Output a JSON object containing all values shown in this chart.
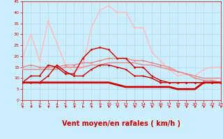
{
  "background_color": "#cceeff",
  "grid_color": "#aadddd",
  "xlabel": "Vent moyen/en rafales ( km/h )",
  "xlabel_color": "#cc0000",
  "xlabel_fontsize": 7,
  "tick_color": "#cc0000",
  "ylim": [
    0,
    45
  ],
  "xlim": [
    0,
    23
  ],
  "yticks": [
    0,
    5,
    10,
    15,
    20,
    25,
    30,
    35,
    40,
    45
  ],
  "xticks": [
    0,
    1,
    2,
    3,
    4,
    5,
    6,
    7,
    8,
    9,
    10,
    11,
    12,
    13,
    14,
    15,
    16,
    17,
    18,
    19,
    20,
    21,
    22,
    23
  ],
  "lines": [
    {
      "x": [
        0,
        1,
        2,
        3,
        4,
        5,
        6,
        7,
        8,
        9,
        10,
        11,
        12,
        13,
        14,
        15,
        16,
        17,
        18,
        19,
        20,
        21,
        22,
        23
      ],
      "y": [
        8,
        8,
        8,
        8,
        8,
        8,
        8,
        8,
        8,
        8,
        8,
        7,
        6,
        6,
        6,
        6,
        6,
        6,
        5,
        5,
        5,
        8,
        8,
        8
      ],
      "color": "#cc0000",
      "lw": 2.0,
      "marker": null,
      "ms": 0,
      "zorder": 5
    },
    {
      "x": [
        0,
        1,
        2,
        3,
        4,
        5,
        6,
        7,
        8,
        9,
        10,
        11,
        12,
        13,
        14,
        15,
        16,
        17,
        18,
        19,
        20,
        21,
        22,
        23
      ],
      "y": [
        8,
        11,
        11,
        16,
        15,
        12,
        12,
        19,
        23,
        24,
        23,
        19,
        19,
        15,
        15,
        11,
        9,
        8,
        8,
        8,
        8,
        8,
        8,
        8
      ],
      "color": "#cc0000",
      "lw": 1.0,
      "marker": "D",
      "ms": 1.5,
      "zorder": 4
    },
    {
      "x": [
        0,
        1,
        2,
        3,
        4,
        5,
        6,
        7,
        8,
        9,
        10,
        11,
        12,
        13,
        14,
        15,
        16,
        17,
        18,
        19,
        20,
        21,
        22,
        23
      ],
      "y": [
        14,
        14,
        14,
        14,
        14,
        15,
        15,
        15,
        16,
        16,
        17,
        17,
        17,
        17,
        16,
        16,
        15,
        14,
        13,
        12,
        11,
        10,
        10,
        10
      ],
      "color": "#e88888",
      "lw": 1.0,
      "marker": null,
      "ms": 0,
      "zorder": 3
    },
    {
      "x": [
        0,
        1,
        2,
        3,
        4,
        5,
        6,
        7,
        8,
        9,
        10,
        11,
        12,
        13,
        14,
        15,
        16,
        17,
        18,
        19,
        20,
        21,
        22,
        23
      ],
      "y": [
        19,
        30,
        18,
        36,
        26,
        16,
        13,
        15,
        33,
        41,
        43,
        40,
        40,
        33,
        33,
        22,
        18,
        14,
        11,
        12,
        11,
        14,
        15,
        15
      ],
      "color": "#ffbbbb",
      "lw": 1.0,
      "marker": "o",
      "ms": 1.5,
      "zorder": 2
    },
    {
      "x": [
        0,
        1,
        2,
        3,
        4,
        5,
        6,
        7,
        8,
        9,
        10,
        11,
        12,
        13,
        14,
        15,
        16,
        17,
        18,
        19,
        20,
        21,
        22,
        23
      ],
      "y": [
        15,
        16,
        15,
        15,
        15,
        16,
        16,
        17,
        17,
        18,
        19,
        19,
        19,
        18,
        18,
        17,
        16,
        15,
        13,
        12,
        10,
        9,
        9,
        8
      ],
      "color": "#e88888",
      "lw": 1.0,
      "marker": "o",
      "ms": 1.5,
      "zorder": 3
    },
    {
      "x": [
        0,
        1,
        2,
        3,
        4,
        5,
        6,
        7,
        8,
        9,
        10,
        11,
        12,
        13,
        14,
        15,
        16,
        17,
        18,
        19,
        20,
        21,
        22,
        23
      ],
      "y": [
        8,
        8,
        8,
        11,
        16,
        13,
        11,
        11,
        14,
        16,
        16,
        15,
        14,
        11,
        11,
        10,
        8,
        8,
        8,
        8,
        8,
        8,
        8,
        8
      ],
      "color": "#cc0000",
      "lw": 1.0,
      "marker": "o",
      "ms": 1.5,
      "zorder": 4
    }
  ],
  "arrow_color": "#cc0000",
  "figsize": [
    3.2,
    2.0
  ],
  "dpi": 100
}
